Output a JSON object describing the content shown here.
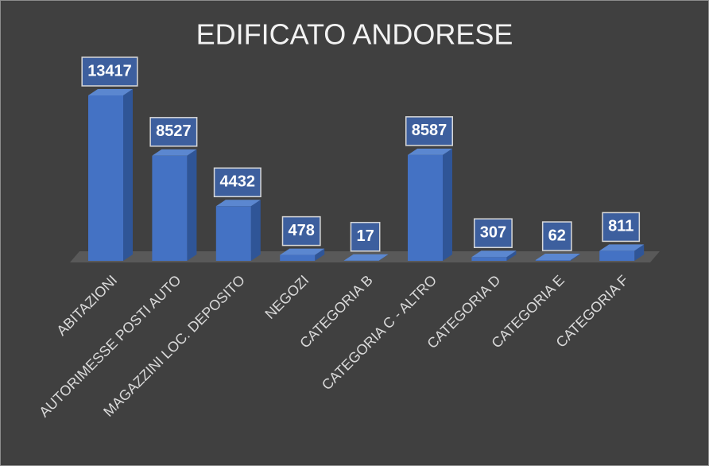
{
  "chart_data": {
    "type": "bar",
    "title": "EDIFICATO ANDORESE",
    "categories": [
      "ABITAZIONI",
      "AUTORIMESSE POSTI AUTO",
      "MAGAZZINI LOC. DEPOSITO",
      "NEGOZI",
      "CATEGORIA B",
      "CATEGORIA C - ALTRO",
      "CATEGORIA D",
      "CATEGORIA E",
      "CATEGORIA F"
    ],
    "values": [
      13417,
      8527,
      4432,
      478,
      17,
      8587,
      307,
      62,
      811
    ],
    "color": "#4472c4"
  }
}
